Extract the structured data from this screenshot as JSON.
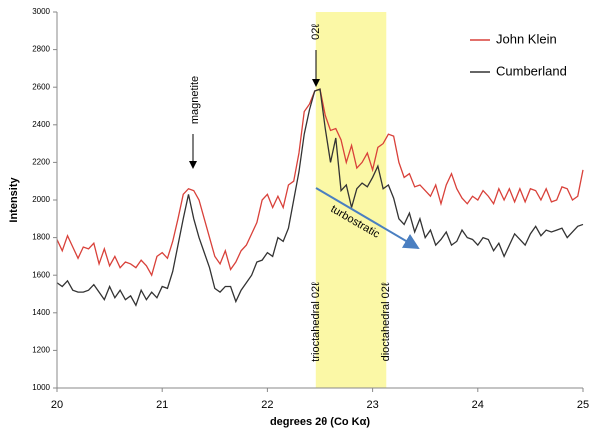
{
  "chart_data": {
    "type": "line",
    "x_label": "degrees 2θ (Co Kα)",
    "y_label": "Intensity",
    "x": [
      20,
      20.05,
      20.1,
      20.15,
      20.2,
      20.25,
      20.3,
      20.35,
      20.4,
      20.45,
      20.5,
      20.55,
      20.6,
      20.65,
      20.7,
      20.75,
      20.8,
      20.85,
      20.9,
      20.95,
      21,
      21.05,
      21.1,
      21.15,
      21.2,
      21.25,
      21.3,
      21.35,
      21.4,
      21.45,
      21.5,
      21.55,
      21.6,
      21.65,
      21.7,
      21.75,
      21.8,
      21.85,
      21.9,
      21.95,
      22,
      22.05,
      22.1,
      22.15,
      22.2,
      22.25,
      22.3,
      22.35,
      22.4,
      22.45,
      22.5,
      22.55,
      22.6,
      22.65,
      22.7,
      22.75,
      22.8,
      22.85,
      22.9,
      22.95,
      23,
      23.05,
      23.1,
      23.15,
      23.2,
      23.25,
      23.3,
      23.35,
      23.4,
      23.45,
      23.5,
      23.55,
      23.6,
      23.65,
      23.7,
      23.75,
      23.8,
      23.85,
      23.9,
      23.95,
      24,
      24.05,
      24.1,
      24.15,
      24.2,
      24.25,
      24.3,
      24.35,
      24.4,
      24.45,
      24.5,
      24.55,
      24.6,
      24.65,
      24.7,
      24.75,
      24.8,
      24.85,
      24.9,
      24.95,
      25
    ],
    "series": [
      {
        "name": "John Klein",
        "color": "#d9413a",
        "values": [
          1790,
          1730,
          1810,
          1750,
          1690,
          1750,
          1740,
          1770,
          1660,
          1740,
          1650,
          1700,
          1640,
          1670,
          1660,
          1640,
          1680,
          1650,
          1600,
          1700,
          1720,
          1690,
          1780,
          1900,
          2030,
          2060,
          2050,
          2000,
          1900,
          1800,
          1700,
          1660,
          1730,
          1630,
          1670,
          1730,
          1760,
          1820,
          1880,
          2000,
          2030,
          1960,
          2020,
          1960,
          2080,
          2100,
          2250,
          2470,
          2510,
          2580,
          2590,
          2450,
          2370,
          2380,
          2320,
          2200,
          2290,
          2170,
          2200,
          2250,
          2160,
          2280,
          2300,
          2350,
          2340,
          2200,
          2120,
          2140,
          2070,
          2080,
          2050,
          2020,
          2080,
          1980,
          2080,
          2140,
          2060,
          2010,
          1980,
          2020,
          2000,
          2050,
          2020,
          1980,
          2060,
          2000,
          2060,
          1990,
          2060,
          1990,
          2060,
          2050,
          2000,
          2060,
          1990,
          2000,
          2070,
          2060,
          2000,
          2020,
          2160
        ]
      },
      {
        "name": "Cumberland",
        "color": "#333333",
        "values": [
          1560,
          1540,
          1570,
          1520,
          1510,
          1510,
          1520,
          1550,
          1510,
          1470,
          1540,
          1480,
          1520,
          1470,
          1490,
          1440,
          1520,
          1470,
          1510,
          1480,
          1540,
          1530,
          1620,
          1760,
          1900,
          2030,
          1900,
          1800,
          1720,
          1640,
          1530,
          1510,
          1540,
          1540,
          1460,
          1520,
          1560,
          1600,
          1670,
          1680,
          1720,
          1700,
          1800,
          1780,
          1850,
          2000,
          2150,
          2350,
          2480,
          2580,
          2590,
          2380,
          2200,
          2330,
          2050,
          2080,
          1960,
          2060,
          2090,
          2070,
          2120,
          2180,
          2060,
          2080,
          2010,
          1900,
          1870,
          1930,
          1830,
          1900,
          1800,
          1840,
          1760,
          1790,
          1830,
          1760,
          1780,
          1840,
          1800,
          1790,
          1760,
          1800,
          1790,
          1730,
          1770,
          1700,
          1760,
          1820,
          1790,
          1760,
          1820,
          1860,
          1810,
          1840,
          1830,
          1840,
          1850,
          1800,
          1830,
          1860,
          1870
        ]
      }
    ],
    "xlim": [
      20,
      25
    ],
    "xticks": [
      20,
      21,
      22,
      23,
      24,
      25
    ],
    "ylim": [
      1000,
      3000
    ],
    "yticks": [
      1000,
      1200,
      1400,
      1600,
      1800,
      2000,
      2200,
      2400,
      2600,
      2800,
      3000
    ],
    "highlight_range": [
      22.46,
      23.13
    ],
    "highlight_color": "#fbf8a6",
    "annotations": [
      "magnetite",
      "02ℓ",
      "turbostratic",
      "trioctahedral 02ℓ",
      "dioctahedral 02ℓ"
    ],
    "legend": "top-right",
    "grid": false
  }
}
